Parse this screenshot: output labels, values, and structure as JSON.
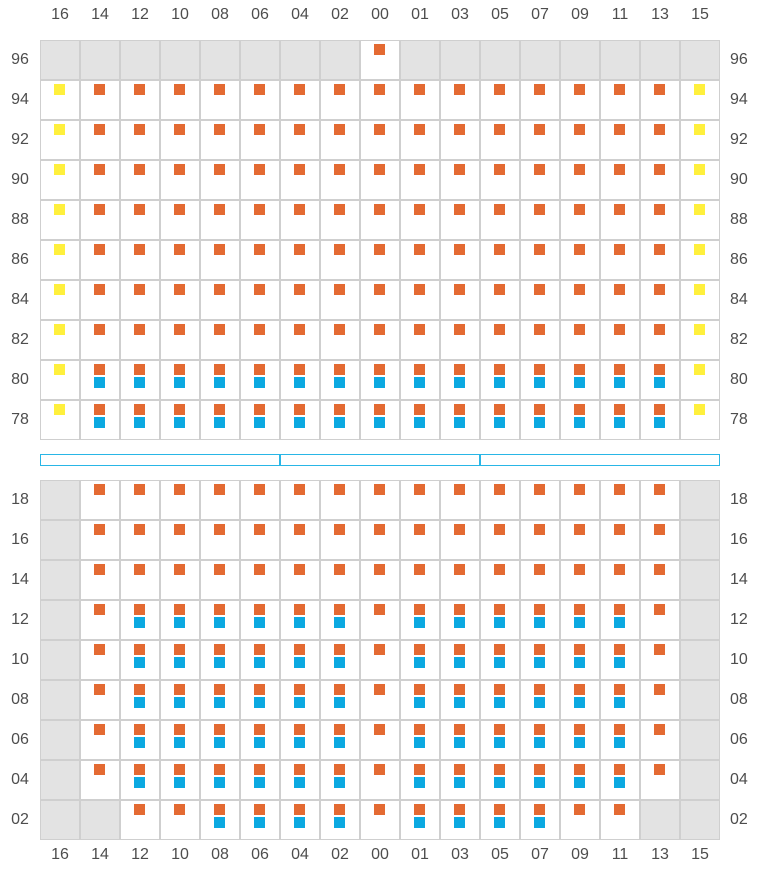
{
  "column_labels": [
    "16",
    "14",
    "12",
    "10",
    "08",
    "06",
    "04",
    "02",
    "00",
    "01",
    "03",
    "05",
    "07",
    "09",
    "11",
    "13",
    "15"
  ],
  "top_block": {
    "rows": [
      {
        "label": "96",
        "cells": [
          "na",
          "na",
          "na",
          "na",
          "na",
          "na",
          "na",
          "na",
          "o",
          "na",
          "na",
          "na",
          "na",
          "na",
          "na",
          "na",
          "na"
        ]
      },
      {
        "label": "94",
        "cells": [
          "y",
          "o",
          "o",
          "o",
          "o",
          "o",
          "o",
          "o",
          "o",
          "o",
          "o",
          "o",
          "o",
          "o",
          "o",
          "o",
          "y"
        ]
      },
      {
        "label": "92",
        "cells": [
          "y",
          "o",
          "o",
          "o",
          "o",
          "o",
          "o",
          "o",
          "o",
          "o",
          "o",
          "o",
          "o",
          "o",
          "o",
          "o",
          "y"
        ]
      },
      {
        "label": "90",
        "cells": [
          "y",
          "o",
          "o",
          "o",
          "o",
          "o",
          "o",
          "o",
          "o",
          "o",
          "o",
          "o",
          "o",
          "o",
          "o",
          "o",
          "y"
        ]
      },
      {
        "label": "88",
        "cells": [
          "y",
          "o",
          "o",
          "o",
          "o",
          "o",
          "o",
          "o",
          "o",
          "o",
          "o",
          "o",
          "o",
          "o",
          "o",
          "o",
          "y"
        ]
      },
      {
        "label": "86",
        "cells": [
          "y",
          "o",
          "o",
          "o",
          "o",
          "o",
          "o",
          "o",
          "o",
          "o",
          "o",
          "o",
          "o",
          "o",
          "o",
          "o",
          "y"
        ]
      },
      {
        "label": "84",
        "cells": [
          "y",
          "o",
          "o",
          "o",
          "o",
          "o",
          "o",
          "o",
          "o",
          "o",
          "o",
          "o",
          "o",
          "o",
          "o",
          "o",
          "y"
        ]
      },
      {
        "label": "82",
        "cells": [
          "y",
          "o",
          "o",
          "o",
          "o",
          "o",
          "o",
          "o",
          "o",
          "o",
          "o",
          "o",
          "o",
          "o",
          "o",
          "o",
          "y"
        ]
      },
      {
        "label": "80",
        "cells": [
          "y",
          "ob",
          "ob",
          "ob",
          "ob",
          "ob",
          "ob",
          "ob",
          "ob",
          "ob",
          "ob",
          "ob",
          "ob",
          "ob",
          "ob",
          "ob",
          "y"
        ]
      },
      {
        "label": "78",
        "cells": [
          "y",
          "ob",
          "ob",
          "ob",
          "ob",
          "ob",
          "ob",
          "ob",
          "ob",
          "ob",
          "ob",
          "ob",
          "ob",
          "ob",
          "ob",
          "ob",
          "y"
        ]
      }
    ]
  },
  "bottom_block": {
    "rows": [
      {
        "label": "18",
        "cells": [
          "na",
          "o",
          "o",
          "o",
          "o",
          "o",
          "o",
          "o",
          "o",
          "o",
          "o",
          "o",
          "o",
          "o",
          "o",
          "o",
          "na"
        ]
      },
      {
        "label": "16",
        "cells": [
          "na",
          "o",
          "o",
          "o",
          "o",
          "o",
          "o",
          "o",
          "o",
          "o",
          "o",
          "o",
          "o",
          "o",
          "o",
          "o",
          "na"
        ]
      },
      {
        "label": "14",
        "cells": [
          "na",
          "o",
          "o",
          "o",
          "o",
          "o",
          "o",
          "o",
          "o",
          "o",
          "o",
          "o",
          "o",
          "o",
          "o",
          "o",
          "na"
        ]
      },
      {
        "label": "12",
        "cells": [
          "na",
          "o",
          "ob",
          "ob",
          "ob",
          "ob",
          "ob",
          "ob",
          "o",
          "ob",
          "ob",
          "ob",
          "ob",
          "ob",
          "ob",
          "o",
          "na"
        ]
      },
      {
        "label": "10",
        "cells": [
          "na",
          "o",
          "ob",
          "ob",
          "ob",
          "ob",
          "ob",
          "ob",
          "o",
          "ob",
          "ob",
          "ob",
          "ob",
          "ob",
          "ob",
          "o",
          "na"
        ]
      },
      {
        "label": "08",
        "cells": [
          "na",
          "o",
          "ob",
          "ob",
          "ob",
          "ob",
          "ob",
          "ob",
          "o",
          "ob",
          "ob",
          "ob",
          "ob",
          "ob",
          "ob",
          "o",
          "na"
        ]
      },
      {
        "label": "06",
        "cells": [
          "na",
          "o",
          "ob",
          "ob",
          "ob",
          "ob",
          "ob",
          "ob",
          "o",
          "ob",
          "ob",
          "ob",
          "ob",
          "ob",
          "ob",
          "o",
          "na"
        ]
      },
      {
        "label": "04",
        "cells": [
          "na",
          "o",
          "ob",
          "ob",
          "ob",
          "ob",
          "ob",
          "ob",
          "o",
          "ob",
          "ob",
          "ob",
          "ob",
          "ob",
          "ob",
          "o",
          "na"
        ]
      },
      {
        "label": "02",
        "cells": [
          "na",
          "na",
          "o",
          "o",
          "ob",
          "ob",
          "ob",
          "ob",
          "o",
          "ob",
          "ob",
          "ob",
          "ob",
          "o",
          "o",
          "na",
          "na"
        ]
      }
    ]
  },
  "colors": {
    "orange": "#e46a32",
    "blue": "#0ba9e1",
    "yellow": "#fff03c",
    "unavailable": "#e3e3e3",
    "grid": "#cfcfcf",
    "rail": "#29b6e6",
    "label": "#4d4d4d"
  }
}
